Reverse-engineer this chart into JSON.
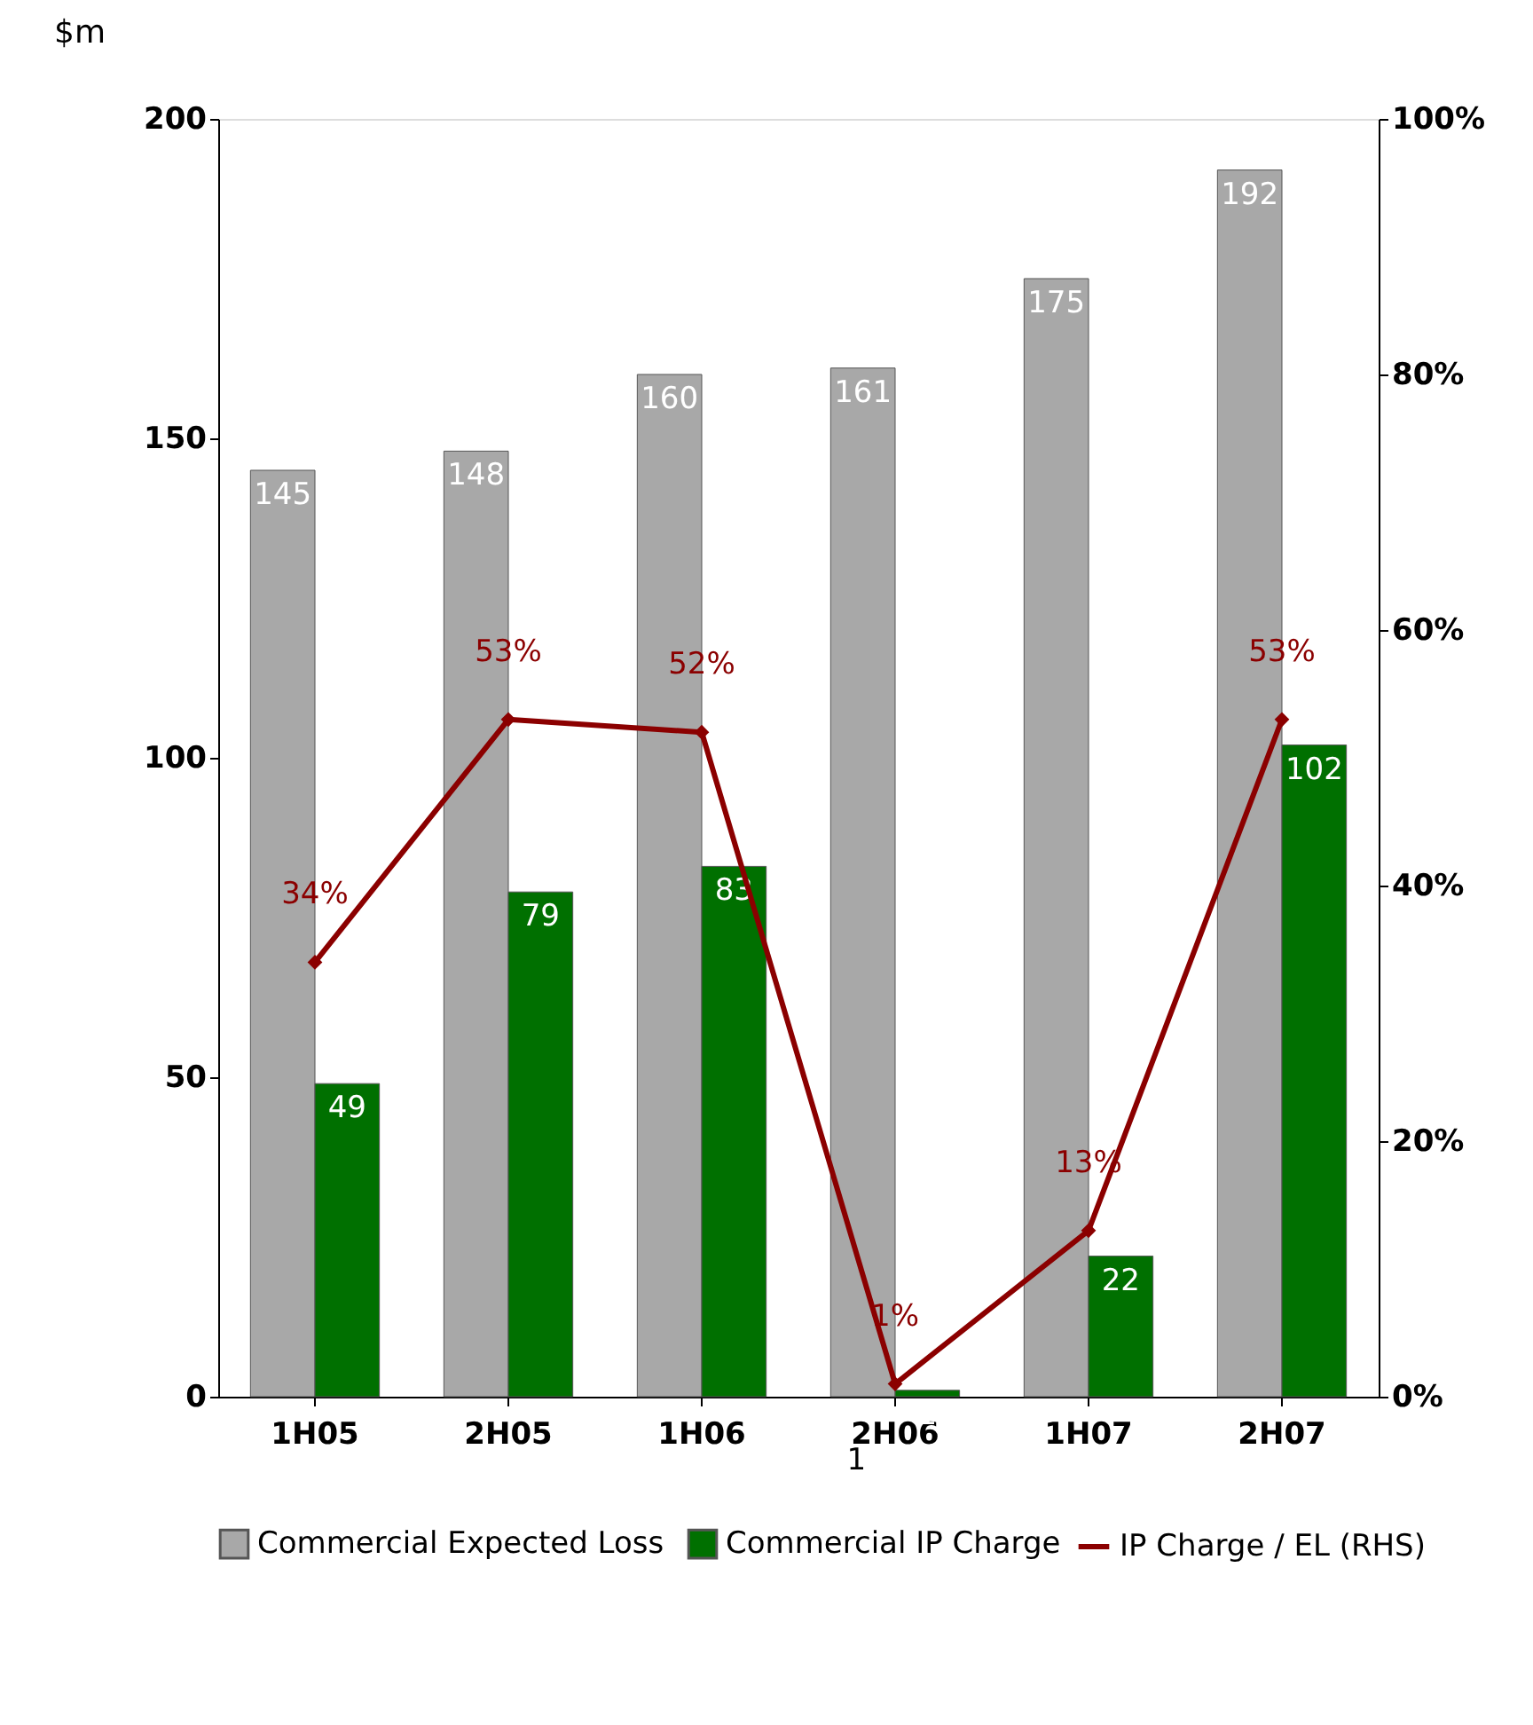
{
  "chart_data": {
    "type": "bar",
    "ylabel": "$m",
    "categories": [
      "1H05",
      "2H05",
      "1H06",
      "2H06",
      "1H07",
      "2H07"
    ],
    "series": [
      {
        "name": "Commercial Expected Loss",
        "color": "#a8a8a8",
        "values": [
          145,
          148,
          160,
          161,
          175,
          192
        ]
      },
      {
        "name": "Commercial IP Charge",
        "color": "#007000",
        "values": [
          49,
          79,
          83,
          1,
          22,
          102
        ]
      },
      {
        "name": "IP Charge / EL (RHS)",
        "type": "line",
        "axis": "y2",
        "color": "#8b0000",
        "marker": "diamond",
        "values": [
          34,
          53,
          52,
          1,
          13,
          53
        ],
        "value_labels": [
          "34%",
          "53%",
          "52%",
          "1%",
          "13%",
          "53%"
        ]
      }
    ],
    "data_labels": true,
    "ylim": [
      0,
      200
    ],
    "yticks": [
      0,
      50,
      100,
      150,
      200
    ],
    "y2lim": [
      0,
      100
    ],
    "y2ticks": [
      {
        "value": 0,
        "label": "0%"
      },
      {
        "value": 20,
        "label": "20%"
      },
      {
        "value": 40,
        "label": "40%"
      },
      {
        "value": 60,
        "label": "60%"
      },
      {
        "value": 80,
        "label": "80%"
      },
      {
        "value": 100,
        "label": "100%"
      }
    ],
    "legend": "bottom",
    "grid": false,
    "annotations": [
      "1"
    ]
  }
}
